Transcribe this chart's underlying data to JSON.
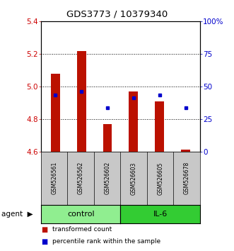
{
  "title": "GDS3773 / 10379340",
  "samples": [
    "GSM526561",
    "GSM526562",
    "GSM526602",
    "GSM526603",
    "GSM526605",
    "GSM526678"
  ],
  "red_bar_top": [
    5.08,
    5.22,
    4.77,
    4.97,
    4.91,
    4.615
  ],
  "red_bar_bottom": 4.6,
  "blue_pct": [
    43.75,
    46.25,
    33.75,
    41.25,
    43.75,
    33.75
  ],
  "ylim": [
    4.6,
    5.4
  ],
  "y2lim": [
    0,
    100
  ],
  "y_ticks": [
    4.6,
    4.8,
    5.0,
    5.2,
    5.4
  ],
  "y2_ticks": [
    0,
    25,
    50,
    75,
    100
  ],
  "y2_tick_labels": [
    "0",
    "25",
    "50",
    "75",
    "100%"
  ],
  "groups": [
    {
      "label": "control",
      "start": 0,
      "end": 3,
      "color": "#90EE90"
    },
    {
      "label": "IL-6",
      "start": 3,
      "end": 6,
      "color": "#33CC33"
    }
  ],
  "bar_color": "#BB1100",
  "blue_color": "#0000CC",
  "bar_width": 0.35,
  "legend_red_label": "transformed count",
  "legend_blue_label": "percentile rank within the sample",
  "left_color": "#CC0000",
  "right_color": "#0000CC"
}
